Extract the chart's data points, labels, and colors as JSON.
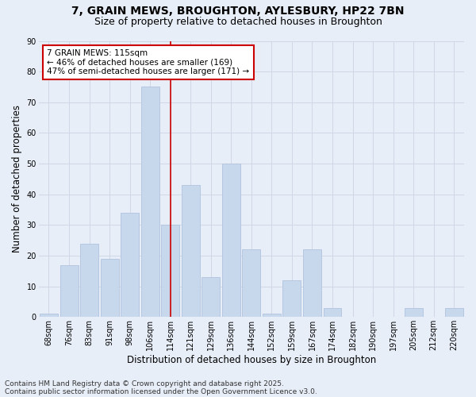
{
  "title": "7, GRAIN MEWS, BROUGHTON, AYLESBURY, HP22 7BN",
  "subtitle": "Size of property relative to detached houses in Broughton",
  "xlabel": "Distribution of detached houses by size in Broughton",
  "ylabel": "Number of detached properties",
  "categories": [
    "68sqm",
    "76sqm",
    "83sqm",
    "91sqm",
    "98sqm",
    "106sqm",
    "114sqm",
    "121sqm",
    "129sqm",
    "136sqm",
    "144sqm",
    "152sqm",
    "159sqm",
    "167sqm",
    "174sqm",
    "182sqm",
    "190sqm",
    "197sqm",
    "205sqm",
    "212sqm",
    "220sqm"
  ],
  "values": [
    1,
    17,
    24,
    19,
    34,
    75,
    30,
    43,
    13,
    50,
    22,
    1,
    12,
    22,
    3,
    0,
    0,
    0,
    3,
    0,
    3
  ],
  "bar_color": "#c8d8ec",
  "bar_edge_color": "#b0c4de",
  "vline_x_idx": 6,
  "vline_color": "#cc0000",
  "annotation_text": "7 GRAIN MEWS: 115sqm\n← 46% of detached houses are smaller (169)\n47% of semi-detached houses are larger (171) →",
  "annotation_box_color": "#ffffff",
  "annotation_box_edge": "#cc0000",
  "ylim": [
    0,
    90
  ],
  "yticks": [
    0,
    10,
    20,
    30,
    40,
    50,
    60,
    70,
    80,
    90
  ],
  "grid_color": "#d0d8e8",
  "background_color": "#e8eef8",
  "footer": "Contains HM Land Registry data © Crown copyright and database right 2025.\nContains public sector information licensed under the Open Government Licence v3.0.",
  "title_fontsize": 10,
  "subtitle_fontsize": 9,
  "axis_label_fontsize": 8.5,
  "tick_fontsize": 7,
  "footer_fontsize": 6.5,
  "annotation_fontsize": 7.5
}
